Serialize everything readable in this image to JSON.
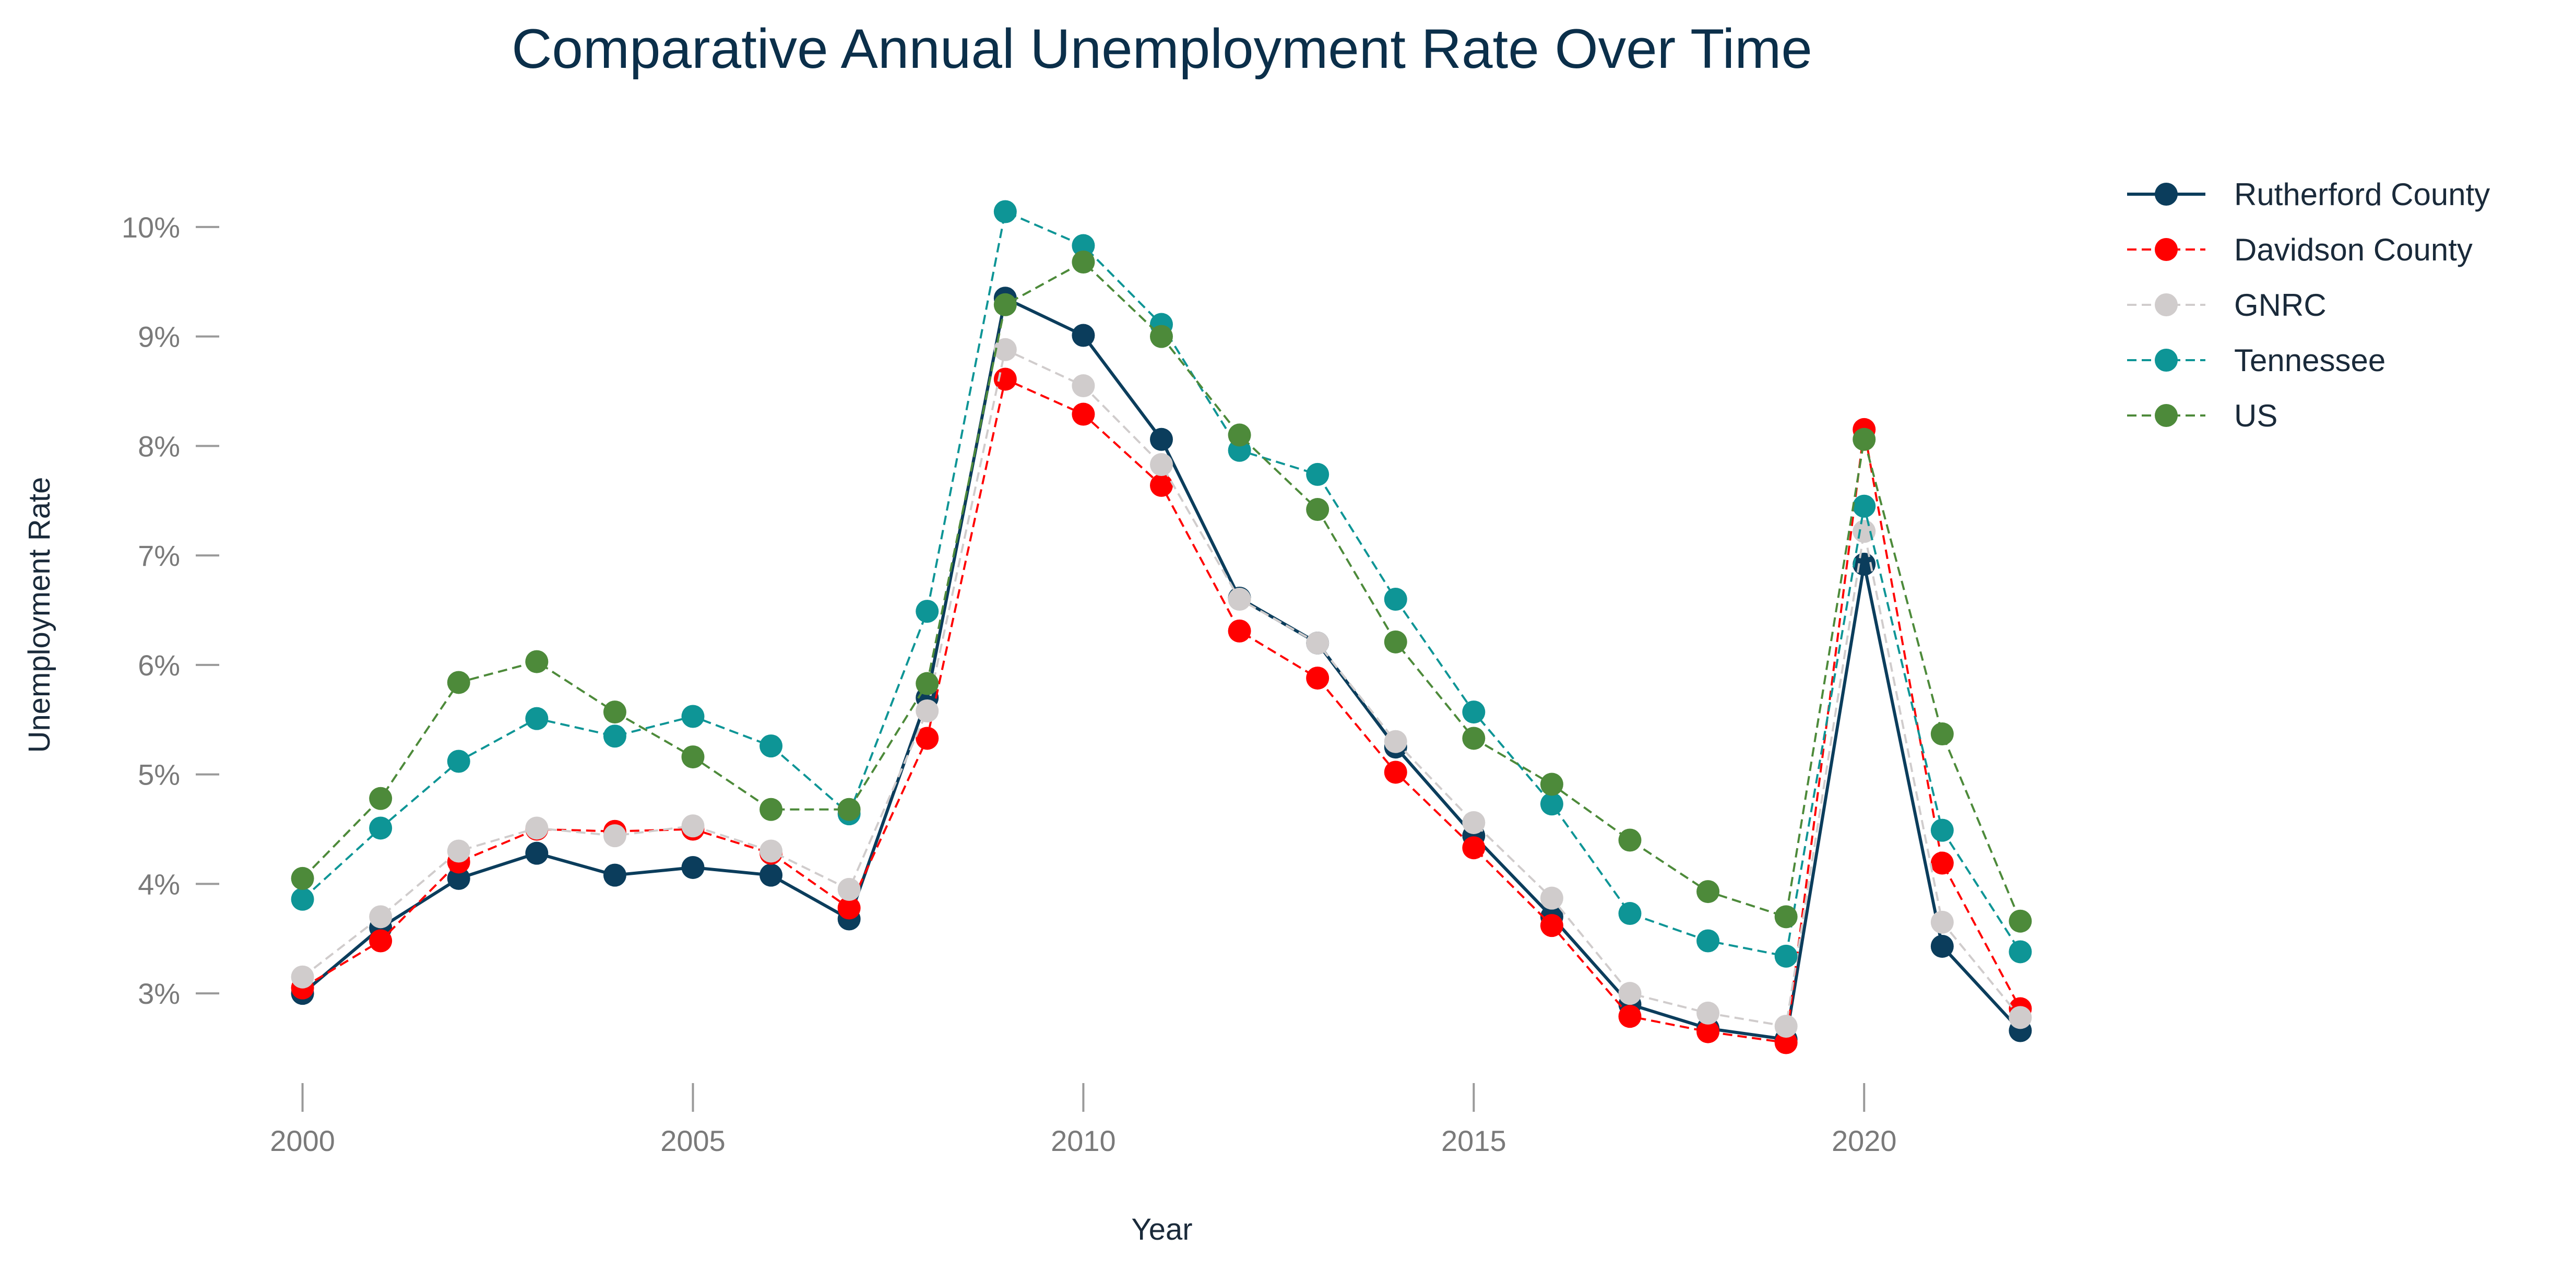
{
  "chart_data": {
    "type": "line",
    "title": "Comparative Annual Unemployment Rate Over Time",
    "xlabel": "Year",
    "ylabel": "Unemployment Rate",
    "x": [
      2000,
      2001,
      2002,
      2003,
      2004,
      2005,
      2006,
      2007,
      2008,
      2009,
      2010,
      2011,
      2012,
      2013,
      2014,
      2015,
      2016,
      2017,
      2018,
      2019,
      2020,
      2021,
      2022
    ],
    "xticks": [
      2000,
      2005,
      2010,
      2015,
      2020
    ],
    "xtick_labels": [
      "2000",
      "2005",
      "2010",
      "2015",
      "2020"
    ],
    "xlim": [
      1999,
      2023
    ],
    "yticks": [
      3,
      4,
      5,
      6,
      7,
      8,
      9,
      10
    ],
    "ytick_labels": [
      "3%",
      "4%",
      "5%",
      "6%",
      "7%",
      "8%",
      "9%",
      "10%"
    ],
    "ylim": [
      2.3,
      10.5
    ],
    "grid": false,
    "legend_position": "top-right",
    "series": [
      {
        "name": "Rutherford County",
        "color": "#0b3d5c",
        "dash": "solid",
        "values": [
          3.0,
          3.6,
          4.05,
          4.28,
          4.08,
          4.15,
          4.08,
          3.68,
          5.7,
          9.35,
          9.01,
          8.06,
          6.61,
          6.2,
          5.25,
          4.44,
          3.7,
          2.9,
          2.68,
          2.58,
          6.92,
          3.43,
          2.66
        ]
      },
      {
        "name": "Davidson County",
        "color": "#ff0000",
        "dash": "dashed",
        "values": [
          3.05,
          3.48,
          4.2,
          4.5,
          4.48,
          4.5,
          4.28,
          3.78,
          5.33,
          8.61,
          8.29,
          7.64,
          6.31,
          5.88,
          5.02,
          4.33,
          3.62,
          2.79,
          2.65,
          2.55,
          8.15,
          4.19,
          2.86
        ]
      },
      {
        "name": "GNRC",
        "color": "#d0cccc",
        "dash": "dashed",
        "values": [
          3.15,
          3.7,
          4.3,
          4.51,
          4.44,
          4.53,
          4.3,
          3.95,
          5.58,
          8.88,
          8.55,
          7.83,
          6.6,
          6.2,
          5.3,
          4.56,
          3.87,
          3.0,
          2.82,
          2.7,
          7.22,
          3.65,
          2.78
        ]
      },
      {
        "name": "Tennessee",
        "color": "#0e9596",
        "dash": "dashed",
        "values": [
          3.86,
          4.51,
          5.12,
          5.51,
          5.35,
          5.53,
          5.26,
          4.64,
          6.49,
          10.14,
          9.83,
          9.11,
          7.96,
          7.74,
          6.6,
          5.57,
          4.73,
          3.73,
          3.48,
          3.34,
          7.45,
          4.49,
          3.38
        ]
      },
      {
        "name": "US",
        "color": "#4d8a3a",
        "dash": "dashed",
        "values": [
          4.05,
          4.78,
          5.84,
          6.03,
          5.57,
          5.16,
          4.68,
          4.68,
          5.83,
          9.29,
          9.68,
          9.0,
          8.1,
          7.42,
          6.21,
          5.33,
          4.91,
          4.4,
          3.93,
          3.7,
          8.06,
          5.37,
          3.66
        ]
      }
    ]
  }
}
